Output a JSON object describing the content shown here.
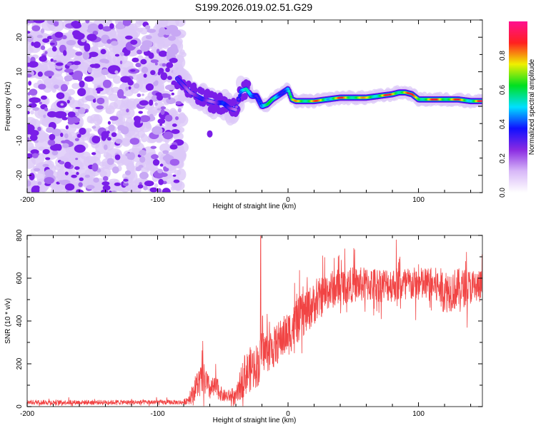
{
  "figure_title": "S199.2026.019.02.51.G29",
  "chart_data": [
    {
      "type": "heatmap",
      "title": "S199.2026.019.02.51.G29",
      "xlabel": "Height of straight line (km)",
      "ylabel": "Frequency (Hz)",
      "xlim": [
        -200,
        149
      ],
      "ylim": [
        -25,
        25
      ],
      "xticks": [
        -200,
        -100,
        0,
        100
      ],
      "xtick_labels": [
        "-200",
        "-100",
        "0",
        "100"
      ],
      "yticks": [
        -20,
        -10,
        0,
        10,
        20
      ],
      "ytick_labels": [
        "-20",
        "-10",
        "0",
        "10",
        "20"
      ],
      "grid": false,
      "colorbar": {
        "label": "Normalized spectral amplitude",
        "range": [
          0,
          1
        ],
        "ticks": [
          0.0,
          0.2,
          0.4,
          0.6,
          0.8
        ],
        "tick_labels": [
          "0.0",
          "0.2",
          "0.4",
          "0.6",
          "0.8"
        ],
        "colormap": [
          "#ffffff",
          "#d8b8f8",
          "#8a2be2",
          "#1010ff",
          "#00e0ff",
          "#00e020",
          "#f0f000",
          "#ff2020",
          "#ff1090"
        ]
      },
      "noise_region": {
        "x_range": [
          -200,
          -85
        ],
        "y_range": [
          -25,
          25
        ],
        "amplitude": 0.15
      },
      "ridge": {
        "description": "Dominant spectral frequency ridge",
        "x": [
          -85,
          -80,
          -75,
          -70,
          -65,
          -60,
          -55,
          -50,
          -45,
          -40,
          -36,
          -32,
          -28,
          -24,
          -20,
          -16,
          -12,
          -8,
          -4,
          0,
          3,
          6,
          10,
          20,
          30,
          40,
          50,
          60,
          70,
          80,
          85,
          90,
          95,
          100,
          110,
          120,
          130,
          140,
          149
        ],
        "freq": [
          8,
          6,
          4,
          3,
          2,
          1.5,
          1,
          1,
          -0.5,
          -1,
          4.5,
          5,
          3,
          3,
          0,
          0.5,
          2,
          3,
          4,
          5,
          2,
          1.5,
          1.5,
          1.5,
          2,
          2.5,
          2.5,
          2.5,
          3,
          3.5,
          4,
          4,
          3.5,
          2,
          2,
          2,
          2,
          1.5,
          1.5
        ],
        "amplitude": [
          0.3,
          0.35,
          0.3,
          0.3,
          0.35,
          0.3,
          0.35,
          0.4,
          0.35,
          0.3,
          0.55,
          0.55,
          0.5,
          0.5,
          0.65,
          0.65,
          0.6,
          0.6,
          0.55,
          0.6,
          0.7,
          0.85,
          0.9,
          0.9,
          0.75,
          0.9,
          0.9,
          0.8,
          0.85,
          0.95,
          0.9,
          0.95,
          0.9,
          0.9,
          0.9,
          0.95,
          0.9,
          0.8,
          0.95
        ]
      },
      "blobs_below": [
        {
          "x": -60,
          "freq": -8,
          "amplitude": 0.2
        }
      ]
    },
    {
      "type": "line",
      "xlabel": "Height of straight line (km)",
      "ylabel": "SNR (10 * v/v)",
      "xlim": [
        -200,
        149
      ],
      "ylim": [
        0,
        800
      ],
      "xticks": [
        -200,
        -100,
        0,
        100
      ],
      "xtick_labels": [
        "-200",
        "-100",
        "0",
        "100"
      ],
      "yticks": [
        0,
        200,
        400,
        600,
        800
      ],
      "ytick_labels": [
        "0",
        "200",
        "400",
        "600",
        "800"
      ],
      "grid": false,
      "color": "#f03030",
      "series": [
        {
          "name": "SNR",
          "envelope_x": [
            -200,
            -80,
            -75,
            -70,
            -65,
            -60,
            -55,
            -50,
            -45,
            -40,
            -35,
            -30,
            -25,
            -22,
            -20,
            -15,
            -10,
            -5,
            0,
            5,
            10,
            15,
            20,
            25,
            30,
            40,
            50,
            60,
            70,
            80,
            90,
            100,
            110,
            115,
            120,
            130,
            140,
            149
          ],
          "mean": [
            20,
            20,
            40,
            100,
            130,
            80,
            90,
            50,
            50,
            40,
            130,
            170,
            190,
            200,
            260,
            260,
            280,
            320,
            340,
            380,
            420,
            450,
            480,
            510,
            540,
            560,
            570,
            570,
            570,
            570,
            570,
            570,
            570,
            560,
            540,
            550,
            560,
            560
          ],
          "spread": [
            15,
            15,
            40,
            90,
            110,
            70,
            70,
            40,
            40,
            50,
            120,
            140,
            140,
            140,
            130,
            130,
            130,
            130,
            140,
            140,
            140,
            140,
            130,
            130,
            120,
            120,
            110,
            110,
            110,
            110,
            110,
            110,
            110,
            120,
            140,
            130,
            110,
            110
          ],
          "spikes": [
            {
              "x": -21,
              "y": 800
            },
            {
              "x": 83,
              "y": 780
            }
          ]
        }
      ]
    }
  ]
}
